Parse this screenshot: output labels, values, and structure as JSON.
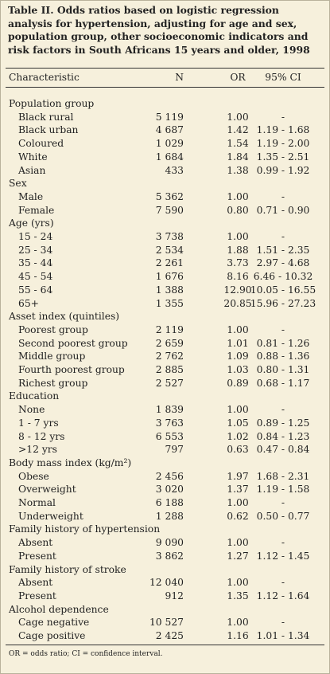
{
  "title": "Table II. Odds ratios based on logistic regression analysis  for hypertension, adjusting for age and sex, population group, other socioeconomic indicators and risk factors in South Africans 15 years and older, 1998",
  "columns": [
    "Characteristic",
    "N",
    "OR",
    "95% CI"
  ],
  "groups": [
    {
      "name": "Population group",
      "rows": [
        [
          "Black rural",
          "5 119",
          "1.00",
          "-"
        ],
        [
          "Black urban",
          "4 687",
          "1.42",
          "1.19 - 1.68"
        ],
        [
          "Coloured",
          "1 029",
          "1.54",
          "1.19 - 2.00"
        ],
        [
          "White",
          "1 684",
          "1.84",
          "1.35 - 2.51"
        ],
        [
          "Asian",
          "433",
          "1.38",
          "0.99 - 1.92"
        ]
      ]
    },
    {
      "name": "Sex",
      "rows": [
        [
          "Male",
          "5 362",
          "1.00",
          "-"
        ],
        [
          "Female",
          "7 590",
          "0.80",
          "0.71 - 0.90"
        ]
      ]
    },
    {
      "name": "Age (yrs)",
      "rows": [
        [
          "15 - 24",
          "3 738",
          "1.00",
          "-"
        ],
        [
          "25 - 34",
          "2 534",
          "1.88",
          "1.51 - 2.35"
        ],
        [
          "35 - 44",
          "2 261",
          "3.73",
          "2.97 - 4.68"
        ],
        [
          "45 - 54",
          "1 676",
          "8.16",
          "6.46 - 10.32"
        ],
        [
          "55 - 64",
          "1 388",
          "12.90",
          "10.05 - 16.55"
        ],
        [
          "65+",
          "1 355",
          "20.85",
          "15.96 - 27.23"
        ]
      ]
    },
    {
      "name": "Asset index (quintiles)",
      "rows": [
        [
          "Poorest group",
          "2 119",
          "1.00",
          "-"
        ],
        [
          "Second poorest group",
          "2 659",
          "1.01",
          "0.81 - 1.26"
        ],
        [
          "Middle group",
          "2 762",
          "1.09",
          "0.88 - 1.36"
        ],
        [
          "Fourth poorest group",
          "2 885",
          "1.03",
          "0.80 - 1.31"
        ],
        [
          "Richest group",
          "2 527",
          "0.89",
          "0.68 - 1.17"
        ]
      ]
    },
    {
      "name": "Education",
      "rows": [
        [
          "None",
          "1 839",
          "1.00",
          "-"
        ],
        [
          "1 - 7 yrs",
          "3 763",
          "1.05",
          "0.89 - 1.25"
        ],
        [
          "8 - 12 yrs",
          "6 553",
          "1.02",
          "0.84 - 1.23"
        ],
        [
          ">12 yrs",
          "797",
          "0.63",
          "0.47 - 0.84"
        ]
      ]
    },
    {
      "name": "Body mass index (kg/m²)",
      "rows": [
        [
          "Obese",
          "2 456",
          "1.97",
          "1.68 - 2.31"
        ],
        [
          "Overweight",
          "3 020",
          "1.37",
          "1.19 - 1.58"
        ],
        [
          "Normal",
          "6 188",
          "1.00",
          "-"
        ],
        [
          "Underweight",
          "1 288",
          "0.62",
          "0.50 - 0.77"
        ]
      ]
    },
    {
      "name": "Family history of hypertension",
      "rows": [
        [
          "Absent",
          "9 090",
          "1.00",
          "-"
        ],
        [
          "Present",
          "3 862",
          "1.27",
          "1.12 - 1.45"
        ]
      ]
    },
    {
      "name": "Family history of stroke",
      "rows": [
        [
          "Absent",
          "12 040",
          "1.00",
          "-"
        ],
        [
          "Present",
          "912",
          "1.35",
          "1.12 - 1.64"
        ]
      ]
    },
    {
      "name": "Alcohol dependence",
      "rows": [
        [
          "Cage negative",
          "10 527",
          "1.00",
          "-"
        ],
        [
          "Cage positive",
          "2 425",
          "1.16",
          "1.01 - 1.34"
        ]
      ]
    }
  ],
  "footnote": "OR = odds ratio; CI = confidence interval."
}
